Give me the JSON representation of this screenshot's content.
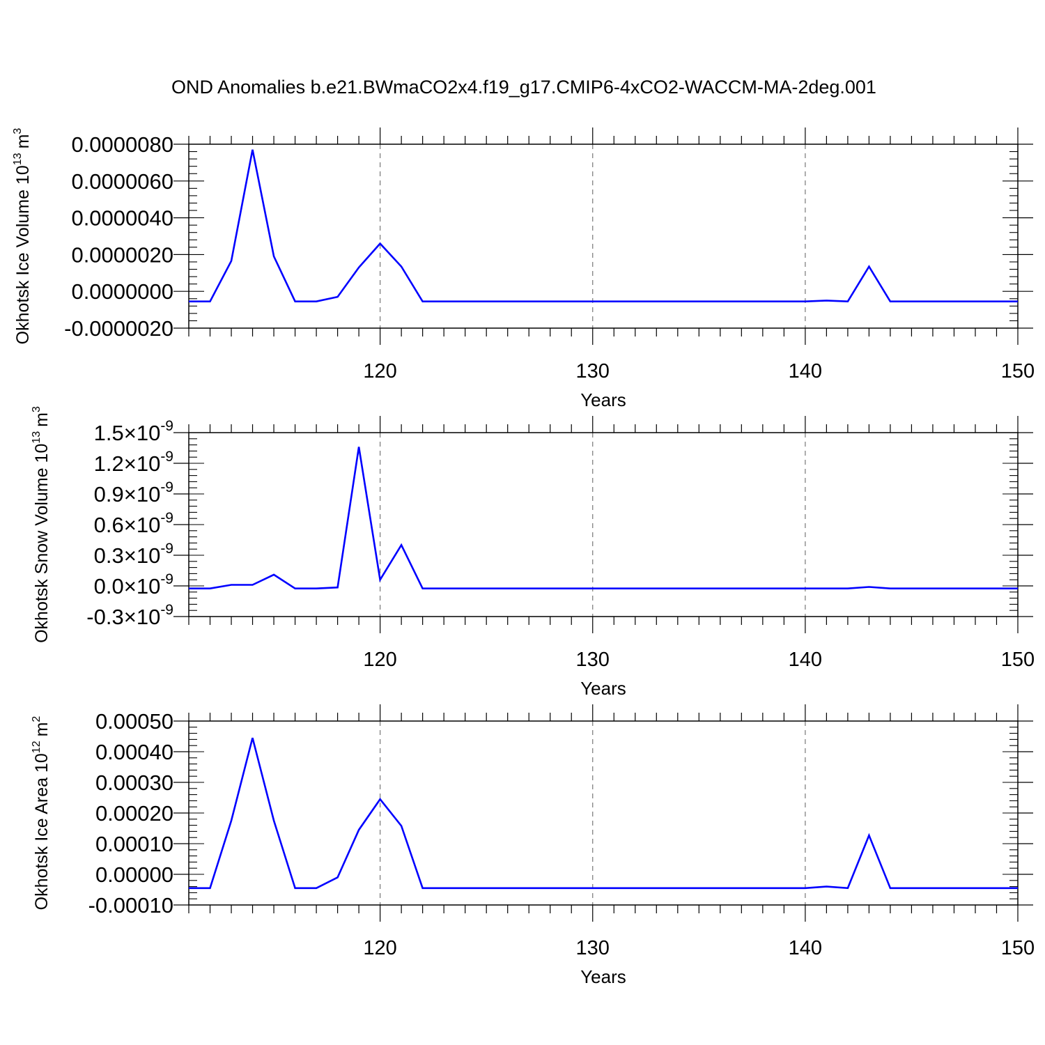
{
  "title": "OND Anomalies b.e21.BWmaCO2x4.f19_g17.CMIP6-4xCO2-WACCM-MA-2deg.001",
  "line_color": "#0000ff",
  "chart_data": [
    {
      "type": "line",
      "ylabel": "Okhotsk Ice Volume 10",
      "ylabel_exp": "13",
      "ylabel_unit": "m",
      "ylabel_unit_exp": "3",
      "xlabel": "Years",
      "xlim": [
        111,
        150
      ],
      "ylim": [
        -2e-06,
        8e-06
      ],
      "x_ticks": [
        "120",
        "130",
        "140",
        "150"
      ],
      "x_tick_values": [
        120,
        130,
        140,
        150
      ],
      "y_ticks": [
        "-0.0000020",
        "0.0000000",
        "0.0000020",
        "0.0000040",
        "0.0000060",
        "0.0000080"
      ],
      "y_tick_values": [
        -2e-06,
        0,
        2e-06,
        4e-06,
        6e-06,
        8e-06
      ],
      "y_minor_step": 4e-07,
      "x": [
        111,
        112,
        113,
        114,
        115,
        116,
        117,
        118,
        119,
        120,
        121,
        122,
        123,
        124,
        125,
        126,
        127,
        128,
        129,
        130,
        131,
        132,
        133,
        134,
        135,
        136,
        137,
        138,
        139,
        140,
        141,
        142,
        143,
        144,
        145,
        146,
        147,
        148,
        149,
        150
      ],
      "values": [
        -5.5e-07,
        -5.5e-07,
        1.65e-06,
        7.7e-06,
        1.9e-06,
        -5.5e-07,
        -5.5e-07,
        -3e-07,
        1.3e-06,
        2.6e-06,
        1.35e-06,
        -5.5e-07,
        -5.5e-07,
        -5.5e-07,
        -5.5e-07,
        -5.5e-07,
        -5.5e-07,
        -5.5e-07,
        -5.5e-07,
        -5.5e-07,
        -5.5e-07,
        -5.5e-07,
        -5.5e-07,
        -5.5e-07,
        -5.5e-07,
        -5.5e-07,
        -5.5e-07,
        -5.5e-07,
        -5.5e-07,
        -5.5e-07,
        -5e-07,
        -5.5e-07,
        1.35e-06,
        -5.5e-07,
        -5.5e-07,
        -5.5e-07,
        -5.5e-07,
        -5.5e-07,
        -5.5e-07,
        -5.5e-07
      ]
    },
    {
      "type": "line",
      "ylabel": "Okhotsk Snow Volume 10",
      "ylabel_exp": "13",
      "ylabel_unit": "m",
      "ylabel_unit_exp": "3",
      "xlabel": "Years",
      "xlim": [
        111,
        150
      ],
      "ylim": [
        -3e-10,
        1.5e-09
      ],
      "x_ticks": [
        "120",
        "130",
        "140",
        "150"
      ],
      "x_tick_values": [
        120,
        130,
        140,
        150
      ],
      "y_ticks": [
        "-0.3",
        "0.0",
        "0.3",
        "0.6",
        "0.9",
        "1.2",
        "1.5"
      ],
      "y_tick_suffix": "×10",
      "y_tick_exp": "-9",
      "y_tick_values": [
        -3e-10,
        0,
        3e-10,
        6e-10,
        9e-10,
        1.2e-09,
        1.5e-09
      ],
      "y_minor_step": 6e-11,
      "x": [
        111,
        112,
        113,
        114,
        115,
        116,
        117,
        118,
        119,
        120,
        121,
        122,
        123,
        124,
        125,
        126,
        127,
        128,
        129,
        130,
        131,
        132,
        133,
        134,
        135,
        136,
        137,
        138,
        139,
        140,
        141,
        142,
        143,
        144,
        145,
        146,
        147,
        148,
        149,
        150
      ],
      "values": [
        -2.5e-11,
        -2.5e-11,
        1e-11,
        1e-11,
        1.1e-10,
        -2.5e-11,
        -2.5e-11,
        -1.5e-11,
        1.36e-09,
        6e-11,
        4e-10,
        -2.5e-11,
        -2.5e-11,
        -2.5e-11,
        -2.5e-11,
        -2.5e-11,
        -2.5e-11,
        -2.5e-11,
        -2.5e-11,
        -2.5e-11,
        -2.5e-11,
        -2.5e-11,
        -2.5e-11,
        -2.5e-11,
        -2.5e-11,
        -2.5e-11,
        -2.5e-11,
        -2.5e-11,
        -2.5e-11,
        -2.5e-11,
        -2.5e-11,
        -2.5e-11,
        -1e-11,
        -2.5e-11,
        -2.5e-11,
        -2.5e-11,
        -2.5e-11,
        -2.5e-11,
        -2.5e-11,
        -2.5e-11
      ]
    },
    {
      "type": "line",
      "ylabel": "Okhotsk Ice Area 10",
      "ylabel_exp": "12",
      "ylabel_unit": "m",
      "ylabel_unit_exp": "2",
      "xlabel": "Years",
      "xlim": [
        111,
        150
      ],
      "ylim": [
        -0.0001,
        0.0005
      ],
      "x_ticks": [
        "120",
        "130",
        "140",
        "150"
      ],
      "x_tick_values": [
        120,
        130,
        140,
        150
      ],
      "y_ticks": [
        "-0.00010",
        "0.00000",
        "0.00010",
        "0.00020",
        "0.00030",
        "0.00040",
        "0.00050"
      ],
      "y_tick_values": [
        -0.0001,
        0,
        0.0001,
        0.0002,
        0.0003,
        0.0004,
        0.0005
      ],
      "y_minor_step": 2e-05,
      "x": [
        111,
        112,
        113,
        114,
        115,
        116,
        117,
        118,
        119,
        120,
        121,
        122,
        123,
        124,
        125,
        126,
        127,
        128,
        129,
        130,
        131,
        132,
        133,
        134,
        135,
        136,
        137,
        138,
        139,
        140,
        141,
        142,
        143,
        144,
        145,
        146,
        147,
        148,
        149,
        150
      ],
      "values": [
        -4.5e-05,
        -4.5e-05,
        0.000175,
        0.000445,
        0.000175,
        -4.5e-05,
        -4.5e-05,
        -1e-05,
        0.000145,
        0.000245,
        0.000158,
        -4.5e-05,
        -4.5e-05,
        -4.5e-05,
        -4.5e-05,
        -4.5e-05,
        -4.5e-05,
        -4.5e-05,
        -4.5e-05,
        -4.5e-05,
        -4.5e-05,
        -4.5e-05,
        -4.5e-05,
        -4.5e-05,
        -4.5e-05,
        -4.5e-05,
        -4.5e-05,
        -4.5e-05,
        -4.5e-05,
        -4.5e-05,
        -4e-05,
        -4.5e-05,
        0.000127,
        -4.5e-05,
        -4.5e-05,
        -4.5e-05,
        -4.5e-05,
        -4.5e-05,
        -4.5e-05,
        -4.5e-05
      ]
    }
  ]
}
